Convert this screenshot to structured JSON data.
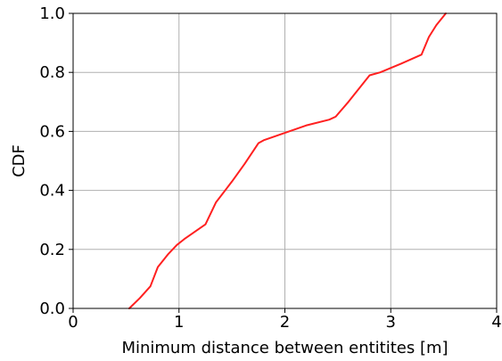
{
  "chart_data": {
    "type": "line",
    "title": "",
    "xlabel": "Minimum distance between entitites [m]",
    "ylabel": "CDF",
    "xlim": [
      0,
      4
    ],
    "ylim": [
      0,
      1
    ],
    "x_ticks": [
      0,
      1,
      2,
      3,
      4
    ],
    "y_ticks": [
      0.0,
      0.2,
      0.4,
      0.6,
      0.8,
      1.0
    ],
    "x_tick_labels": [
      "0",
      "1",
      "2",
      "3",
      "4"
    ],
    "y_tick_labels": [
      "0.0",
      "0.2",
      "0.4",
      "0.6",
      "0.8",
      "1.0"
    ],
    "grid": true,
    "legend": "none",
    "series": [
      {
        "color": "#ff2020",
        "x": [
          0.53,
          0.63,
          0.73,
          0.8,
          0.9,
          0.98,
          1.05,
          1.15,
          1.25,
          1.35,
          1.5,
          1.62,
          1.75,
          1.8,
          2.0,
          2.2,
          2.42,
          2.48,
          2.6,
          2.8,
          2.9,
          3.1,
          3.29,
          3.36,
          3.43,
          3.52
        ],
        "y": [
          0.0,
          0.035,
          0.075,
          0.14,
          0.185,
          0.215,
          0.235,
          0.26,
          0.285,
          0.36,
          0.43,
          0.49,
          0.56,
          0.57,
          0.595,
          0.62,
          0.64,
          0.65,
          0.7,
          0.79,
          0.8,
          0.83,
          0.86,
          0.92,
          0.96,
          1.0
        ]
      }
    ]
  }
}
